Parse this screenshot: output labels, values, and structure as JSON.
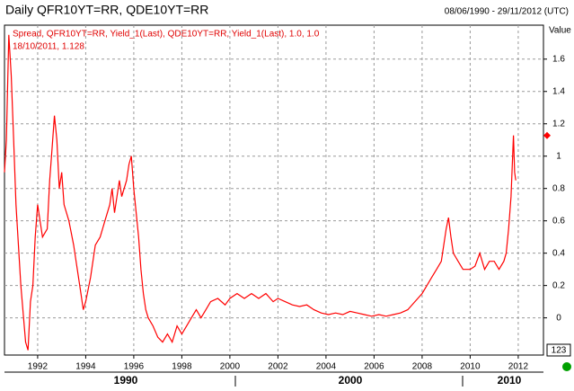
{
  "chart_data": {
    "type": "line",
    "title": "Daily QFR10YT=RR, QDE10YT=RR",
    "date_range": "08/06/1990 - 29/11/2012 (UTC)",
    "legend_text": "Spread, QFR10YT=RR, Yield_1(Last), QDE10YT=RR, Yield_1(Last),  1.0, 1.0",
    "last_label": "18/10/2011, 1.128",
    "last_value": 1.128,
    "y_axis_label": "Value",
    "corner_label": "123",
    "decades": [
      "1990",
      "2000",
      "2010"
    ],
    "xlim": [
      1990.62,
      2013.05
    ],
    "xticks": [
      1992,
      1994,
      1996,
      1998,
      2000,
      2002,
      2004,
      2006,
      2008,
      2010,
      2012
    ],
    "ylim": [
      -0.23,
      1.81
    ],
    "yticks": [
      0,
      0.2,
      0.4,
      0.6,
      0.8,
      1,
      1.2,
      1.4,
      1.6
    ],
    "grid": true,
    "series": [
      {
        "name": "Spread",
        "color": "#ff0000",
        "x": [
          1990.62,
          1990.7,
          1990.8,
          1990.9,
          1991.0,
          1991.1,
          1991.3,
          1991.5,
          1991.6,
          1991.7,
          1991.8,
          1991.9,
          1992.0,
          1992.2,
          1992.4,
          1992.5,
          1992.6,
          1992.7,
          1992.8,
          1992.9,
          1993.0,
          1993.1,
          1993.3,
          1993.5,
          1993.6,
          1993.8,
          1993.9,
          1994.0,
          1994.2,
          1994.4,
          1994.6,
          1994.8,
          1995.0,
          1995.1,
          1995.2,
          1995.4,
          1995.5,
          1995.7,
          1995.8,
          1995.9,
          1996.0,
          1996.1,
          1996.2,
          1996.3,
          1996.4,
          1996.5,
          1996.6,
          1996.8,
          1997.0,
          1997.2,
          1997.4,
          1997.6,
          1997.8,
          1998.0,
          1998.2,
          1998.4,
          1998.6,
          1998.8,
          1999.0,
          1999.2,
          1999.5,
          1999.8,
          2000.0,
          2000.3,
          2000.6,
          2000.9,
          2001.2,
          2001.5,
          2001.8,
          2002.0,
          2002.3,
          2002.6,
          2002.9,
          2003.2,
          2003.5,
          2003.8,
          2004.1,
          2004.4,
          2004.7,
          2005.0,
          2005.3,
          2005.6,
          2005.9,
          2006.2,
          2006.5,
          2006.8,
          2007.1,
          2007.4,
          2007.7,
          2008.0,
          2008.2,
          2008.4,
          2008.6,
          2008.8,
          2008.9,
          2009.0,
          2009.1,
          2009.2,
          2009.3,
          2009.5,
          2009.7,
          2009.9,
          2010.0,
          2010.2,
          2010.4,
          2010.6,
          2010.8,
          2011.0,
          2011.2,
          2011.4,
          2011.5,
          2011.6,
          2011.7,
          2011.8,
          2011.85,
          2011.9
        ],
        "values": [
          0.9,
          1.1,
          1.75,
          1.5,
          1.1,
          0.7,
          0.2,
          -0.15,
          -0.2,
          0.1,
          0.2,
          0.5,
          0.7,
          0.5,
          0.55,
          0.85,
          1.05,
          1.25,
          1.1,
          0.8,
          0.9,
          0.7,
          0.6,
          0.45,
          0.35,
          0.15,
          0.05,
          0.1,
          0.25,
          0.45,
          0.5,
          0.6,
          0.7,
          0.8,
          0.65,
          0.85,
          0.75,
          0.85,
          0.95,
          1.0,
          0.8,
          0.65,
          0.5,
          0.3,
          0.15,
          0.05,
          0.0,
          -0.05,
          -0.12,
          -0.15,
          -0.1,
          -0.15,
          -0.05,
          -0.1,
          -0.05,
          0.0,
          0.05,
          0.0,
          0.05,
          0.1,
          0.12,
          0.08,
          0.12,
          0.15,
          0.12,
          0.15,
          0.12,
          0.15,
          0.1,
          0.12,
          0.1,
          0.08,
          0.07,
          0.08,
          0.05,
          0.03,
          0.02,
          0.03,
          0.02,
          0.04,
          0.03,
          0.02,
          0.01,
          0.02,
          0.01,
          0.02,
          0.03,
          0.05,
          0.1,
          0.15,
          0.2,
          0.25,
          0.3,
          0.35,
          0.45,
          0.55,
          0.62,
          0.5,
          0.4,
          0.35,
          0.3,
          0.3,
          0.3,
          0.32,
          0.4,
          0.3,
          0.35,
          0.35,
          0.3,
          0.35,
          0.4,
          0.55,
          0.75,
          1.128,
          0.9,
          0.85
        ]
      }
    ]
  }
}
